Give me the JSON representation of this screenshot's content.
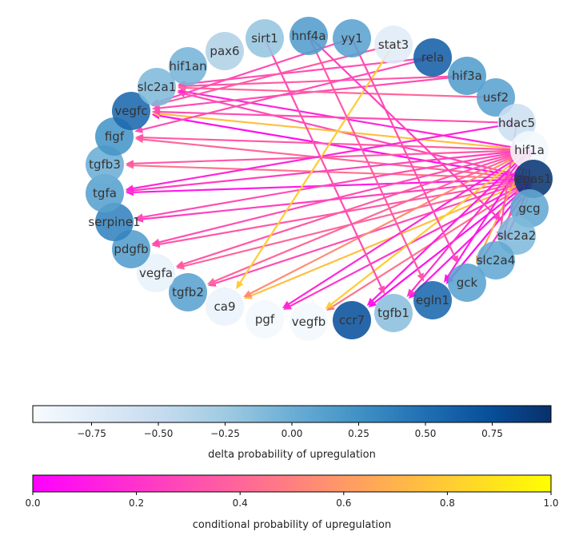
{
  "network": {
    "nodes": [
      {
        "id": "pax6",
        "delta": -0.35
      },
      {
        "id": "sirt1",
        "delta": -0.2
      },
      {
        "id": "hnf4a",
        "delta": 0.15
      },
      {
        "id": "yy1",
        "delta": 0.1
      },
      {
        "id": "stat3",
        "delta": -0.75
      },
      {
        "id": "rela",
        "delta": 0.62
      },
      {
        "id": "hif3a",
        "delta": 0.15
      },
      {
        "id": "usf2",
        "delta": 0.1
      },
      {
        "id": "hdac5",
        "delta": -0.55
      },
      {
        "id": "hif1a",
        "delta": -0.92
      },
      {
        "id": "epas1",
        "delta": 0.92
      },
      {
        "id": "gcg",
        "delta": 0.05
      },
      {
        "id": "slc2a2",
        "delta": -0.1
      },
      {
        "id": "slc2a4",
        "delta": 0.05
      },
      {
        "id": "gck",
        "delta": 0.1
      },
      {
        "id": "egln1",
        "delta": 0.55
      },
      {
        "id": "tgfb1",
        "delta": -0.15
      },
      {
        "id": "ccr7",
        "delta": 0.72
      },
      {
        "id": "vegfb",
        "delta": -0.92
      },
      {
        "id": "pgf",
        "delta": -0.92
      },
      {
        "id": "ca9",
        "delta": -0.85
      },
      {
        "id": "tgfb2",
        "delta": 0.1
      },
      {
        "id": "vegfa",
        "delta": -0.82
      },
      {
        "id": "pdgfb",
        "delta": 0.15
      },
      {
        "id": "serpine1",
        "delta": 0.35
      },
      {
        "id": "tgfa",
        "delta": 0.12
      },
      {
        "id": "tgfb3",
        "delta": 0.0
      },
      {
        "id": "figf",
        "delta": 0.22
      },
      {
        "id": "vegfc",
        "delta": 0.55
      },
      {
        "id": "slc2a1",
        "delta": -0.1
      },
      {
        "id": "hif1an",
        "delta": -0.05
      }
    ],
    "edges": [
      {
        "source": "epas1",
        "target": "slc2a1",
        "p": 0.3
      },
      {
        "source": "epas1",
        "target": "vegfc",
        "p": 0.05
      },
      {
        "source": "epas1",
        "target": "figf",
        "p": 0.4
      },
      {
        "source": "epas1",
        "target": "tgfb3",
        "p": 0.45
      },
      {
        "source": "epas1",
        "target": "tgfa",
        "p": 0.1
      },
      {
        "source": "epas1",
        "target": "serpine1",
        "p": 0.25
      },
      {
        "source": "epas1",
        "target": "pdgfb",
        "p": 0.35
      },
      {
        "source": "epas1",
        "target": "vegfa",
        "p": 0.4
      },
      {
        "source": "epas1",
        "target": "tgfb2",
        "p": 0.3
      },
      {
        "source": "epas1",
        "target": "ca9",
        "p": 0.75
      },
      {
        "source": "epas1",
        "target": "pgf",
        "p": 0.2
      },
      {
        "source": "epas1",
        "target": "vegfb",
        "p": 0.45
      },
      {
        "source": "epas1",
        "target": "ccr7",
        "p": 0.05
      },
      {
        "source": "epas1",
        "target": "tgfb1",
        "p": 0.1
      },
      {
        "source": "epas1",
        "target": "egln1",
        "p": 0.05
      },
      {
        "source": "epas1",
        "target": "gck",
        "p": 0.2
      },
      {
        "source": "epas1",
        "target": "slc2a4",
        "p": 0.15
      },
      {
        "source": "epas1",
        "target": "slc2a2",
        "p": 0.7
      },
      {
        "source": "hif1a",
        "target": "slc2a1",
        "p": 0.15
      },
      {
        "source": "hif1a",
        "target": "vegfc",
        "p": 0.75
      },
      {
        "source": "hif1a",
        "target": "figf",
        "p": 0.35
      },
      {
        "source": "hif1a",
        "target": "tgfb3",
        "p": 0.35
      },
      {
        "source": "hif1a",
        "target": "tgfa",
        "p": 0.25
      },
      {
        "source": "hif1a",
        "target": "serpine1",
        "p": 0.3
      },
      {
        "source": "hif1a",
        "target": "pdgfb",
        "p": 0.3
      },
      {
        "source": "hif1a",
        "target": "vegfa",
        "p": 0.35
      },
      {
        "source": "hif1a",
        "target": "tgfb2",
        "p": 0.4
      },
      {
        "source": "hif1a",
        "target": "ca9",
        "p": 0.55
      },
      {
        "source": "hif1a",
        "target": "pgf",
        "p": 0.15
      },
      {
        "source": "hif1a",
        "target": "vegfb",
        "p": 0.8
      },
      {
        "source": "hif1a",
        "target": "ccr7",
        "p": 0.1
      },
      {
        "source": "hif1a",
        "target": "tgfb1",
        "p": 0.2
      },
      {
        "source": "hif1a",
        "target": "egln1",
        "p": 0.1
      },
      {
        "source": "hif1a",
        "target": "gck",
        "p": 0.65
      },
      {
        "source": "hif1a",
        "target": "slc2a4",
        "p": 0.35
      },
      {
        "source": "hif1a",
        "target": "slc2a2",
        "p": 0.6
      },
      {
        "source": "hif1a",
        "target": "gcg",
        "p": 0.4
      },
      {
        "source": "hif1a",
        "target": "epas1",
        "p": 0.15
      },
      {
        "source": "hif3a",
        "target": "slc2a1",
        "p": 0.35
      },
      {
        "source": "hif3a",
        "target": "vegfc",
        "p": 0.3
      },
      {
        "source": "hdac5",
        "target": "vegfc",
        "p": 0.3
      },
      {
        "source": "hdac5",
        "target": "tgfa",
        "p": 0.15
      },
      {
        "source": "hdac5",
        "target": "slc2a4",
        "p": 0.35
      },
      {
        "source": "usf2",
        "target": "slc2a1",
        "p": 0.4
      },
      {
        "source": "rela",
        "target": "figf",
        "p": 0.3
      },
      {
        "source": "rela",
        "target": "slc2a1",
        "p": 0.3
      },
      {
        "source": "stat3",
        "target": "vegfc",
        "p": 0.35
      },
      {
        "source": "stat3",
        "target": "ca9",
        "p": 0.8
      },
      {
        "source": "yy1",
        "target": "vegfc",
        "p": 0.3
      },
      {
        "source": "yy1",
        "target": "gck",
        "p": 0.3
      },
      {
        "source": "hnf4a",
        "target": "egln1",
        "p": 0.35
      },
      {
        "source": "hnf4a",
        "target": "slc2a2",
        "p": 0.25
      },
      {
        "source": "sirt1",
        "target": "tgfb1",
        "p": 0.3
      }
    ]
  },
  "colorbars": {
    "delta": {
      "label": "delta probability of upregulation",
      "ticks": [
        "−0.75",
        "−0.50",
        "−0.25",
        "0.00",
        "0.25",
        "0.50",
        "0.75"
      ],
      "tick_values": [
        -0.75,
        -0.5,
        -0.25,
        0.0,
        0.25,
        0.5,
        0.75
      ],
      "range": [
        -0.97,
        0.97
      ],
      "colormap": "Blues"
    },
    "conditional": {
      "label": "conditional probability of upregulation",
      "ticks": [
        "0.0",
        "0.2",
        "0.4",
        "0.6",
        "0.8",
        "1.0"
      ],
      "tick_values": [
        0.0,
        0.2,
        0.4,
        0.6,
        0.8,
        1.0
      ],
      "range": [
        0.0,
        1.0
      ],
      "colormap": "spring"
    }
  }
}
